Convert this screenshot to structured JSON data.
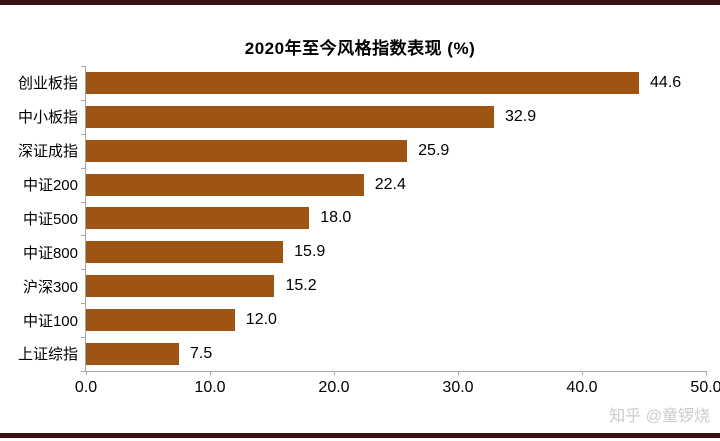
{
  "page": {
    "watermark": "知乎 @童锣烧",
    "background_color": "#FFFFFF",
    "top_band_color": "#3B100E",
    "bottom_band_color": "#3B100E"
  },
  "chart_data": {
    "type": "bar",
    "orientation": "horizontal",
    "title": "2020年至今风格指数表现 (%)",
    "categories": [
      "创业板指",
      "中小板指",
      "深证成指",
      "中证200",
      "中证500",
      "中证800",
      "沪深300",
      "中证100",
      "上证综指"
    ],
    "values": [
      44.6,
      32.9,
      25.9,
      22.4,
      18.0,
      15.9,
      15.2,
      12.0,
      7.5
    ],
    "value_labels": [
      "44.6",
      "32.9",
      "25.9",
      "22.4",
      "18.0",
      "15.9",
      "15.2",
      "12.0",
      "7.5"
    ],
    "xlim": [
      0,
      50
    ],
    "x_tick_labels": [
      "0.0",
      "10.0",
      "20.0",
      "30.0",
      "40.0",
      "50.0"
    ],
    "xlabel": "",
    "ylabel": "",
    "bar_color": "#9E5412",
    "axis_color": "#A6A6A6",
    "grid": false,
    "legend_position": "none",
    "data_labels": true
  }
}
